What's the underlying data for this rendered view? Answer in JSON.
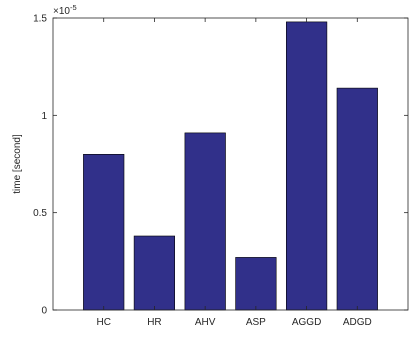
{
  "chart_data": {
    "type": "bar",
    "categories": [
      "HC",
      "HR",
      "AHV",
      "ASP",
      "AGGD",
      "ADGD"
    ],
    "values": [
      0.8,
      0.38,
      0.91,
      0.27,
      1.48,
      1.14
    ],
    "ylabel": "time [second]",
    "xlabel": "",
    "title": "",
    "ylim": [
      0,
      1.5
    ],
    "y_ticks": [
      0,
      0.5,
      1,
      1.5
    ],
    "y_tick_labels": [
      "0",
      "0.5",
      "1",
      "1.5"
    ],
    "y_exponent_base": "×10",
    "y_exponent_power": "-5",
    "bar_color": "#31308a",
    "bar_edge_color": "#000000",
    "grid": false,
    "box": true
  }
}
